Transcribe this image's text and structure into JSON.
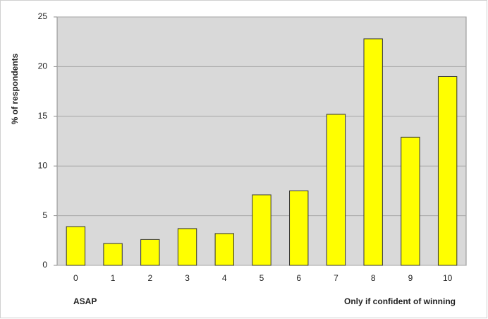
{
  "chart_data": {
    "type": "bar",
    "y_label": "% of respondents",
    "categories": [
      "0",
      "1",
      "2",
      "3",
      "4",
      "5",
      "6",
      "7",
      "8",
      "9",
      "10"
    ],
    "values": [
      3.9,
      2.2,
      2.6,
      3.7,
      3.2,
      7.1,
      7.5,
      15.2,
      22.8,
      12.9,
      19.0
    ],
    "color": "#ffff00",
    "ylim": [
      0,
      25
    ],
    "yticks": [
      0,
      5,
      10,
      15,
      20,
      25
    ],
    "grid": true,
    "annotations": [
      "ASAP",
      "Only if confident of winning"
    ]
  }
}
